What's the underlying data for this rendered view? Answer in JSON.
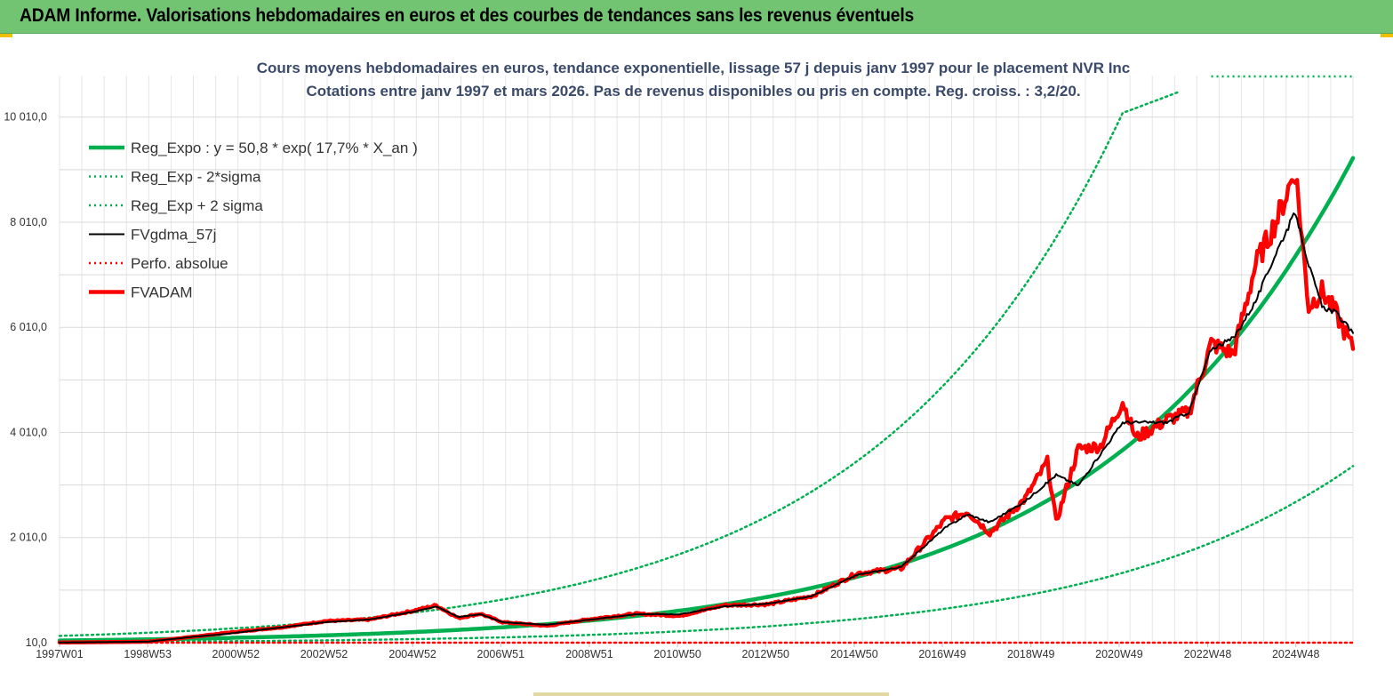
{
  "banner": {
    "title": "ADAM Informe. Valorisations hebdomadaires en euros et des courbes de tendances sans les revenus éventuels"
  },
  "chart_data": {
    "type": "line",
    "title_line1": "Cours moyens hebdomadaires en euros, tendance exponentielle, lissage 57 j depuis janv 1997 pour le placement NVR Inc",
    "title_line2": "Cotations entre janv 1997 et mars 2026. Pas de revenus disponibles ou pris en compte. Reg. croiss. : 3,2/20.",
    "xlabel": "",
    "ylabel": "",
    "x_range": [
      1997.0,
      2026.2
    ],
    "ylim": [
      10,
      10800
    ],
    "yticks": [
      10,
      2010,
      4010,
      6010,
      8010,
      10010
    ],
    "ytick_labels": [
      "10,0",
      "2 010,0",
      "4 010,0",
      "6 010,0",
      "8 010,0",
      "10 010,0"
    ],
    "xticks": [
      1997.0,
      1998.99,
      2000.98,
      2002.97,
      2004.97,
      2006.96,
      2008.96,
      2010.95,
      2012.94,
      2014.94,
      2016.93,
      2018.93,
      2020.92,
      2022.92,
      2024.91
    ],
    "xtick_labels": [
      "1997W01",
      "1998W53",
      "2000W52",
      "2002W52",
      "2004W52",
      "2006W51",
      "2008W51",
      "2010W50",
      "2012W50",
      "2014W50",
      "2016W49",
      "2018W49",
      "2020W49",
      "2022W48",
      "2024W48"
    ],
    "grid": true,
    "legend_position": "top-left",
    "colors": {
      "green": "#00b050",
      "black": "#000000",
      "red": "#ff0000"
    },
    "series": [
      {
        "name": "Reg_Expo : y = 50,8 * exp( 17,7% *  X_an )",
        "style": "thick-solid",
        "color": "#00b050",
        "x": [
          1997,
          1999,
          2001,
          2003,
          2005,
          2007,
          2009,
          2011,
          2013,
          2015,
          2017,
          2019,
          2021,
          2023,
          2025,
          2026.2
        ],
        "values": [
          51,
          73,
          104,
          149,
          212,
          303,
          433,
          619,
          883,
          1262,
          1802,
          2573,
          3675,
          5248,
          7495,
          9230
        ]
      },
      {
        "name": "Reg_Exp - 2*sigma",
        "style": "dotted",
        "color": "#00b050",
        "x": [
          1997,
          1999,
          2001,
          2003,
          2005,
          2007,
          2009,
          2011,
          2013,
          2015,
          2017,
          2019,
          2021,
          2023,
          2025,
          2026.2
        ],
        "values": [
          19,
          27,
          38,
          54,
          77,
          110,
          158,
          225,
          322,
          460,
          657,
          938,
          1339,
          1913,
          2732,
          3370
        ]
      },
      {
        "name": "Reg_Exp + 2 sigma",
        "style": "dotted",
        "color": "#00b050",
        "x": [
          1997,
          1999,
          2001,
          2003,
          2005,
          2007,
          2009,
          2011,
          2013,
          2015,
          2017,
          2019,
          2021,
          2022.3
        ],
        "values": [
          139,
          199,
          285,
          407,
          582,
          831,
          1187,
          1696,
          2423,
          3461,
          4944,
          7063,
          10089,
          10500
        ]
      },
      {
        "name": "FVgdma_57j",
        "style": "thin-solid",
        "color": "#000000",
        "x": [
          1997,
          1998,
          1999,
          2000,
          2000.8,
          2001.5,
          2002,
          2003,
          2004,
          2005,
          2005.5,
          2006,
          2006.5,
          2007,
          2008,
          2009,
          2010,
          2011,
          2012,
          2013,
          2014,
          2015,
          2016,
          2017,
          2017.5,
          2018,
          2018.8,
          2019.5,
          2020,
          2020.5,
          2021,
          2022,
          2022.5,
          2023,
          2023.5,
          2024,
          2024.5,
          2024.9,
          2025.2,
          2025.5,
          2025.8,
          2026.2
        ],
        "values": [
          15,
          20,
          30,
          120,
          180,
          250,
          300,
          400,
          450,
          600,
          700,
          500,
          550,
          400,
          350,
          450,
          550,
          550,
          700,
          750,
          900,
          1300,
          1450,
          2200,
          2450,
          2300,
          2700,
          3200,
          3000,
          3600,
          4200,
          4200,
          4400,
          5600,
          5800,
          6500,
          7500,
          8200,
          7200,
          6400,
          6300,
          5900
        ]
      },
      {
        "name": "Perfo. absolue",
        "style": "dotted",
        "color": "#ff0000",
        "x": [
          1997,
          2026.2
        ],
        "values": [
          10,
          10
        ]
      },
      {
        "name": "FVADAM",
        "style": "thick-solid",
        "color": "#ff0000",
        "x": [
          1997,
          1998,
          1999,
          2000,
          2000.8,
          2001.5,
          2002,
          2003,
          2004,
          2005,
          2005.5,
          2006,
          2006.5,
          2007,
          2008,
          2009,
          2010,
          2011,
          2012,
          2013,
          2014,
          2015,
          2016,
          2017,
          2017.5,
          2018,
          2018.8,
          2019.3,
          2019.5,
          2020,
          2020.5,
          2021,
          2021.3,
          2022,
          2022.5,
          2023,
          2023.5,
          2024,
          2024.5,
          2024.9,
          2025.2,
          2025.5,
          2025.8,
          2026.2
        ],
        "values": [
          15,
          20,
          30,
          120,
          200,
          260,
          300,
          420,
          450,
          620,
          720,
          480,
          560,
          400,
          330,
          460,
          560,
          520,
          720,
          740,
          900,
          1330,
          1420,
          2350,
          2500,
          2100,
          2750,
          3450,
          2300,
          3700,
          3750,
          4600,
          3900,
          4250,
          4400,
          5700,
          5500,
          7200,
          8100,
          9000,
          6400,
          6700,
          6300,
          5600
        ]
      }
    ]
  }
}
